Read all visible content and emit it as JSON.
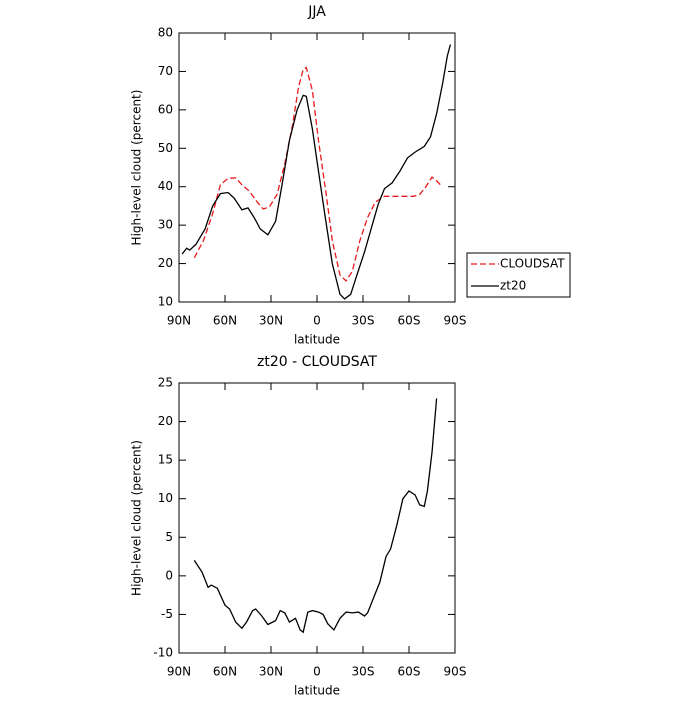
{
  "chart_data": [
    {
      "type": "line",
      "title": "JJA",
      "xlabel": "latitude",
      "ylabel": "High-level cloud (percent)",
      "xlim": [
        90,
        -90
      ],
      "xticks": [
        {
          "value": 90,
          "label": "90N"
        },
        {
          "value": 60,
          "label": "60N"
        },
        {
          "value": 30,
          "label": "30N"
        },
        0,
        {
          "value": -30,
          "label": "30S"
        },
        {
          "value": -60,
          "label": "60S"
        },
        {
          "value": -90,
          "label": "90S"
        }
      ],
      "ylim": [
        10,
        80
      ],
      "yticks": [
        10,
        20,
        30,
        40,
        50,
        60,
        70,
        80
      ],
      "legend": "right",
      "series": [
        {
          "name": "CLOUDSAT",
          "color": "#e8191c",
          "line_style": "dashed",
          "x": [
            80,
            74,
            68,
            63,
            58,
            53,
            49,
            44,
            39,
            35,
            31,
            26,
            21,
            16,
            12,
            9,
            7,
            3,
            -1,
            -6,
            -10,
            -15,
            -19,
            -23,
            -28,
            -33,
            -38,
            -44,
            -54,
            -63,
            -67,
            -71,
            -75,
            -78,
            -81
          ],
          "values": [
            21.5,
            26,
            33,
            40.5,
            42.2,
            42.3,
            40.5,
            38.8,
            36,
            34.2,
            34.8,
            38,
            46,
            56,
            66,
            70.5,
            71,
            65,
            52,
            38,
            26,
            17,
            15.5,
            18,
            26,
            32,
            36,
            37.5,
            37.5,
            37.5,
            38,
            40,
            42.5,
            41.5,
            40.3
          ]
        },
        {
          "name": "zt20",
          "color": "#000000",
          "line_style": "solid",
          "x": [
            88,
            85,
            83,
            79,
            73,
            68,
            63,
            58,
            54,
            49,
            45,
            41,
            37,
            32,
            27,
            23,
            18,
            13,
            9,
            7,
            3,
            -1,
            -5,
            -10,
            -15,
            -18,
            -22,
            -26,
            -31,
            -36,
            -40,
            -44,
            -49,
            -54,
            -59,
            -64,
            -70,
            -74,
            -78,
            -82,
            -85,
            -87
          ],
          "values": [
            22.5,
            24,
            23.5,
            25,
            29,
            35,
            38.2,
            38.5,
            37,
            34,
            34.5,
            32,
            29,
            27.5,
            31,
            40,
            52,
            60,
            63.8,
            63.5,
            55,
            44,
            33,
            20,
            12,
            10.8,
            12,
            17,
            23,
            30,
            35.5,
            39.5,
            41,
            44,
            47.5,
            49,
            50.5,
            53,
            59,
            67,
            74,
            77
          ]
        }
      ]
    },
    {
      "type": "line",
      "title": "zt20 - CLOUDSAT",
      "xlabel": "latitude",
      "ylabel": "High-level cloud (percent)",
      "xlim": [
        90,
        -90
      ],
      "xticks": [
        {
          "value": 90,
          "label": "90N"
        },
        {
          "value": 60,
          "label": "60N"
        },
        {
          "value": 30,
          "label": "30N"
        },
        0,
        {
          "value": -30,
          "label": "30S"
        },
        {
          "value": -60,
          "label": "60S"
        },
        {
          "value": -90,
          "label": "90S"
        }
      ],
      "ylim": [
        -10,
        25
      ],
      "yticks": [
        -10,
        -5,
        0,
        5,
        10,
        15,
        20,
        25
      ],
      "series": [
        {
          "name": "zt20 - CLOUDSAT",
          "color": "#000000",
          "line_style": "solid",
          "x": [
            80,
            75,
            71,
            69,
            65,
            60,
            57,
            53,
            49,
            46,
            42,
            40,
            36,
            32,
            27,
            24,
            21,
            18,
            14,
            11,
            9,
            6,
            3,
            -1,
            -4,
            -7,
            -11,
            -15,
            -19,
            -23,
            -27,
            -31,
            -33,
            -37,
            -41,
            -45,
            -48,
            -52,
            -56,
            -60,
            -64,
            -67,
            -70,
            -72,
            -75,
            -78
          ],
          "values": [
            2,
            0.5,
            -1.5,
            -1.2,
            -1.6,
            -3.8,
            -4.3,
            -6,
            -6.8,
            -6,
            -4.5,
            -4.3,
            -5.2,
            -6.3,
            -5.8,
            -4.5,
            -4.8,
            -6,
            -5.5,
            -7,
            -7.3,
            -4.7,
            -4.5,
            -4.7,
            -5,
            -6.2,
            -7,
            -5.5,
            -4.7,
            -4.8,
            -4.7,
            -5.2,
            -4.8,
            -2.8,
            -0.8,
            2.5,
            3.5,
            6.5,
            10,
            11,
            10.5,
            9.2,
            9,
            11,
            16,
            23
          ]
        }
      ]
    }
  ]
}
